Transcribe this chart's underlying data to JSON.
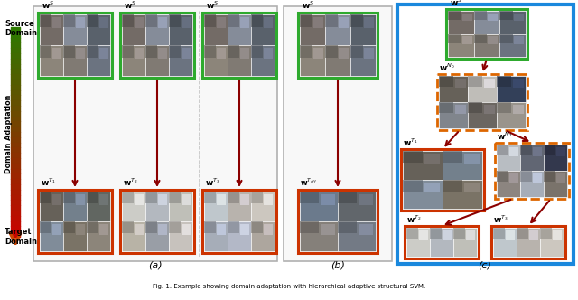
{
  "fig_width": 6.4,
  "fig_height": 3.32,
  "green_box": "#2eaa2e",
  "orange_box": "#cc3300",
  "dashed_orange": "#dd6600",
  "blue_outer": "#1a88dd",
  "gray_outer": "#aaaaaa",
  "dark_red_arrow": "#8b0000",
  "section_labels": [
    "(a)",
    "(b)",
    "(c)"
  ],
  "grad_green": "#2d7a00",
  "grad_orange": "#cc4400",
  "caption": "Fig. 1. Example showing domain adaptation with hierarchical adaptive structural SVM.",
  "src_label": "Source\nDomain",
  "tgt_label": "Target\nDomain",
  "adapt_label": "Domain Adaptation"
}
